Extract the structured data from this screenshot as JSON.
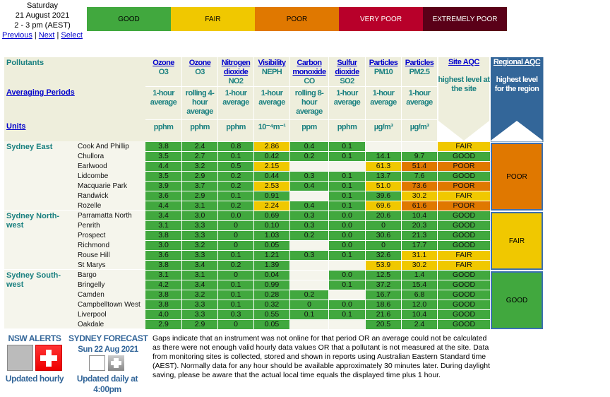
{
  "header": {
    "day": "Saturday",
    "date": "21 August 2021",
    "time": "2 - 3 pm (AEST)",
    "nav": [
      "Previous",
      "Next",
      "Select"
    ]
  },
  "legend": [
    {
      "label": "GOOD",
      "color": "#41a83e",
      "text": "#000"
    },
    {
      "label": "FAIR",
      "color": "#f0c800",
      "text": "#000"
    },
    {
      "label": "POOR",
      "color": "#e07800",
      "text": "#000"
    },
    {
      "label": "VERY POOR",
      "color": "#b8002a",
      "text": "#fff"
    },
    {
      "label": "EXTREMELY POOR",
      "color": "#5a0018",
      "text": "#fff"
    }
  ],
  "table": {
    "row_labels": {
      "pollutants": "Pollutants",
      "averaging": "Averaging Periods",
      "units": "Units"
    },
    "columns": [
      {
        "name": [
          "Ozone"
        ],
        "code": "O3",
        "period": "1-hour average",
        "unit": "pphm"
      },
      {
        "name": [
          "Ozone"
        ],
        "code": "O3",
        "period": "rolling 4-hour average",
        "unit": "pphm"
      },
      {
        "name": [
          "Nitrogen",
          "dioxide"
        ],
        "code": "NO2",
        "period": "1-hour average",
        "unit": "pphm"
      },
      {
        "name": [
          "Visibility"
        ],
        "code": "NEPH",
        "period": "1-hour average",
        "unit": "10⁻⁴m⁻¹"
      },
      {
        "name": [
          "Carbon",
          "monoxide"
        ],
        "code": "CO",
        "period": "rolling 8-hour average",
        "unit": "ppm"
      },
      {
        "name": [
          "Sulfur",
          "dioxide"
        ],
        "code": "SO2",
        "period": "1-hour average",
        "unit": "pphm"
      },
      {
        "name": [
          "Particles"
        ],
        "code": "PM10",
        "period": "1-hour average",
        "unit": "µg/m³"
      },
      {
        "name": [
          "Particles"
        ],
        "code": "PM2.5",
        "period": "1-hour average",
        "unit": "µg/m³"
      }
    ],
    "site_aqc": {
      "title": "Site AQC",
      "desc": "highest level at the site"
    },
    "regional_aqc": {
      "title": "Regional AQC",
      "desc": "highest level for the region"
    },
    "regions": [
      {
        "name": "Sydney East",
        "aqc": "POOR",
        "level": "P",
        "sites": [
          {
            "site": "Cook And Phillip",
            "values": [
              "3.8",
              "2.4",
              "0.8",
              "2.86",
              "0.4",
              "0.1",
              "",
              ""
            ],
            "levels": "GGGFGG--",
            "aqc": "FAIR",
            "aqc_level": "F"
          },
          {
            "site": "Chullora",
            "values": [
              "3.5",
              "2.7",
              "0.1",
              "0.42",
              "0.2",
              "0.1",
              "14.1",
              "9.7"
            ],
            "levels": "GGGGGGGG",
            "aqc": "GOOD",
            "aqc_level": "G"
          },
          {
            "site": "Earlwood",
            "values": [
              "4.4",
              "3.2",
              "0.5",
              "2.15",
              "",
              "",
              "61.3",
              "51.4"
            ],
            "levels": "GGGF--FP",
            "aqc": "POOR",
            "aqc_level": "P"
          },
          {
            "site": "Lidcombe",
            "values": [
              "3.5",
              "2.9",
              "0.2",
              "0.44",
              "0.3",
              "0.1",
              "13.7",
              "7.6"
            ],
            "levels": "GGGGGGGG",
            "aqc": "GOOD",
            "aqc_level": "G"
          },
          {
            "site": "Macquarie Park",
            "values": [
              "3.9",
              "3.7",
              "0.2",
              "2.53",
              "0.4",
              "0.1",
              "51.0",
              "73.6"
            ],
            "levels": "GGGFGGFP",
            "aqc": "POOR",
            "aqc_level": "P"
          },
          {
            "site": "Randwick",
            "values": [
              "3.6",
              "2.9",
              "0.1",
              "0.91",
              "",
              "0.1",
              "39.6",
              "30.2"
            ],
            "levels": "GGGG-GGF",
            "aqc": "FAIR",
            "aqc_level": "F"
          },
          {
            "site": "Rozelle",
            "values": [
              "4.4",
              "3.1",
              "0.2",
              "2.24",
              "0.4",
              "0.1",
              "69.6",
              "61.6"
            ],
            "levels": "GGGFGGFP",
            "aqc": "POOR",
            "aqc_level": "P"
          }
        ]
      },
      {
        "name": "Sydney North-west",
        "aqc": "FAIR",
        "level": "F",
        "sites": [
          {
            "site": "Parramatta North",
            "values": [
              "3.4",
              "3.0",
              "0.0",
              "0.69",
              "0.3",
              "0.0",
              "20.6",
              "10.4"
            ],
            "levels": "GGGGGGGG",
            "aqc": "GOOD",
            "aqc_level": "G"
          },
          {
            "site": "Penrith",
            "values": [
              "3.1",
              "3.3",
              "0",
              "0.10",
              "0.3",
              "0.0",
              "0",
              "20.3"
            ],
            "levels": "GGGGGGGG",
            "aqc": "GOOD",
            "aqc_level": "G"
          },
          {
            "site": "Prospect",
            "values": [
              "3.8",
              "3.3",
              "0",
              "1.03",
              "0.2",
              "0.0",
              "30.6",
              "21.3"
            ],
            "levels": "GGGGGGGG",
            "aqc": "GOOD",
            "aqc_level": "G"
          },
          {
            "site": "Richmond",
            "values": [
              "3.0",
              "3.2",
              "0",
              "0.05",
              "",
              "0.0",
              "0",
              "17.7"
            ],
            "levels": "GGGG-GGG",
            "aqc": "GOOD",
            "aqc_level": "G"
          },
          {
            "site": "Rouse Hill",
            "values": [
              "3.6",
              "3.3",
              "0.1",
              "1.21",
              "0.3",
              "0.1",
              "32.6",
              "31.1"
            ],
            "levels": "GGGGGGGF",
            "aqc": "FAIR",
            "aqc_level": "F"
          },
          {
            "site": "St Marys",
            "values": [
              "3.8",
              "3.4",
              "0.2",
              "1.39",
              "",
              "",
              "53.9",
              "30.2"
            ],
            "levels": "GGGG--FF",
            "aqc": "FAIR",
            "aqc_level": "F"
          }
        ]
      },
      {
        "name": "Sydney South-west",
        "aqc": "GOOD",
        "level": "G",
        "sites": [
          {
            "site": "Bargo",
            "values": [
              "3.1",
              "3.1",
              "0",
              "0.04",
              "",
              "0.0",
              "12.5",
              "1.4"
            ],
            "levels": "GGGG-GGG",
            "aqc": "GOOD",
            "aqc_level": "G"
          },
          {
            "site": "Bringelly",
            "values": [
              "4.2",
              "3.4",
              "0.1",
              "0.99",
              "",
              "0.1",
              "37.2",
              "15.4"
            ],
            "levels": "GGGG-GGG",
            "aqc": "GOOD",
            "aqc_level": "G"
          },
          {
            "site": "Camden",
            "values": [
              "3.8",
              "3.2",
              "0.1",
              "0.28",
              "0.2",
              "",
              "16.7",
              "6.8"
            ],
            "levels": "GGGGG-GG",
            "aqc": "GOOD",
            "aqc_level": "G"
          },
          {
            "site": "Campbelltown West",
            "values": [
              "3.8",
              "3.3",
              "0.1",
              "0.32",
              "0",
              "0.0",
              "18.6",
              "12.0"
            ],
            "levels": "GGGGGGGG",
            "aqc": "GOOD",
            "aqc_level": "G"
          },
          {
            "site": "Liverpool",
            "values": [
              "4.0",
              "3.3",
              "0.3",
              "0.55",
              "0.1",
              "0.1",
              "21.6",
              "10.4"
            ],
            "levels": "GGGGGGGG",
            "aqc": "GOOD",
            "aqc_level": "G"
          },
          {
            "site": "Oakdale",
            "values": [
              "2.9",
              "2.9",
              "0",
              "0.05",
              "",
              "",
              "20.5",
              "2.4"
            ],
            "levels": "GGGG--GG",
            "aqc": "GOOD",
            "aqc_level": "G"
          }
        ]
      }
    ]
  },
  "footer": {
    "alerts_title": "NSW ALERTS",
    "alerts_updated": "Updated hourly",
    "forecast_title": "SYDNEY FORECAST",
    "forecast_date": "Sun 22 Aug 2021",
    "forecast_updated": "Updated daily at 4:00pm",
    "note": "Gaps indicate that an instrument was not online for that period OR an average could not be calculated as there were not enough valid hourly data values OR that a pollutant is not measured at the site. Data from monitoring sites is collected, stored and shown in reports using Australian Eastern Standard time (AEST). Normally data for any hour should be available approximately 30 minutes later. During daylight saving, please be aware that the actual local time equals the displayed time plus 1 hour."
  }
}
